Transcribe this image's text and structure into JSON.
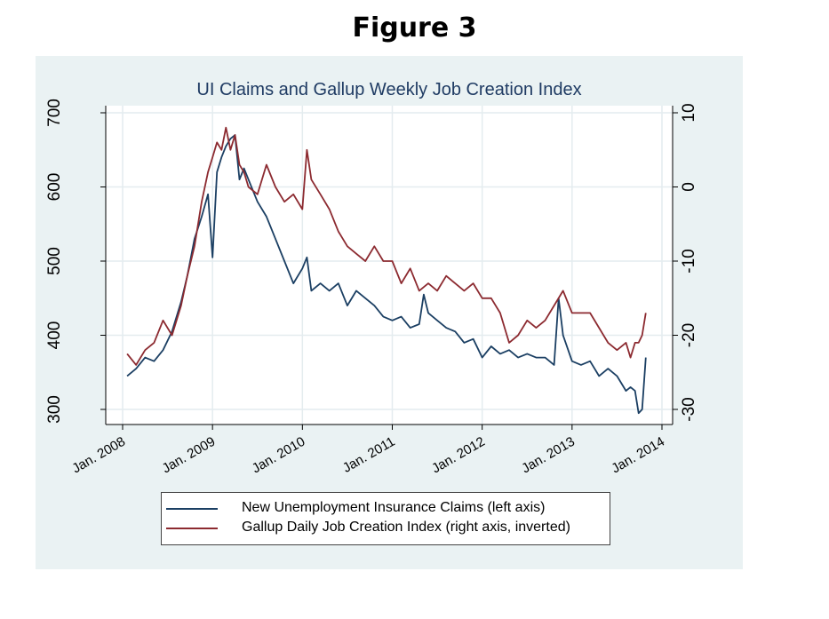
{
  "figure_label": "Figure 3",
  "chart_data": {
    "type": "line",
    "title": "UI Claims and Gallup Weekly Job Creation Index",
    "x_type": "date",
    "x_ticks": [
      "Jan. 2008",
      "Jan. 2009",
      "Jan. 2010",
      "Jan. 2011",
      "Jan. 2012",
      "Jan. 2013",
      "Jan. 2014"
    ],
    "x_tick_values": [
      2008,
      2009,
      2010,
      2011,
      2012,
      2013,
      2014
    ],
    "xlim": [
      2008,
      2014
    ],
    "left_axis": {
      "ylim": [
        300,
        700
      ],
      "ticks": [
        300,
        400,
        500,
        600,
        700
      ]
    },
    "right_axis": {
      "ylim": [
        -30,
        10
      ],
      "ticks": [
        -30,
        -20,
        -10,
        0,
        10
      ],
      "inverted": true
    },
    "grid": true,
    "legend_position": "bottom",
    "series": [
      {
        "name": "New Unemployment Insurance Claims (left axis)",
        "axis": "left",
        "color": "#1b3f63",
        "x": [
          2008.05,
          2008.15,
          2008.25,
          2008.35,
          2008.45,
          2008.55,
          2008.65,
          2008.72,
          2008.8,
          2008.88,
          2008.95,
          2009.0,
          2009.05,
          2009.1,
          2009.15,
          2009.2,
          2009.25,
          2009.3,
          2009.35,
          2009.4,
          2009.5,
          2009.6,
          2009.7,
          2009.8,
          2009.9,
          2010.0,
          2010.05,
          2010.1,
          2010.2,
          2010.3,
          2010.4,
          2010.5,
          2010.6,
          2010.7,
          2010.8,
          2010.9,
          2011.0,
          2011.1,
          2011.2,
          2011.3,
          2011.35,
          2011.4,
          2011.5,
          2011.6,
          2011.7,
          2011.8,
          2011.9,
          2012.0,
          2012.1,
          2012.2,
          2012.3,
          2012.4,
          2012.5,
          2012.6,
          2012.7,
          2012.8,
          2012.85,
          2012.9,
          2013.0,
          2013.1,
          2013.2,
          2013.3,
          2013.4,
          2013.5,
          2013.6,
          2013.65,
          2013.7,
          2013.74,
          2013.78,
          2013.82
        ],
        "values": [
          345,
          355,
          370,
          365,
          380,
          405,
          445,
          480,
          530,
          560,
          590,
          505,
          620,
          640,
          655,
          665,
          670,
          610,
          625,
          610,
          580,
          560,
          530,
          500,
          470,
          490,
          505,
          460,
          470,
          460,
          470,
          440,
          460,
          450,
          440,
          425,
          420,
          425,
          410,
          415,
          455,
          430,
          420,
          410,
          405,
          390,
          395,
          370,
          385,
          375,
          380,
          370,
          375,
          370,
          370,
          360,
          450,
          400,
          365,
          360,
          365,
          345,
          355,
          345,
          325,
          330,
          325,
          295,
          300,
          370
        ]
      },
      {
        "name": "Gallup Daily Job Creation Index (right axis, inverted)",
        "axis": "right",
        "color": "#8c2a30",
        "x": [
          2008.05,
          2008.15,
          2008.25,
          2008.35,
          2008.45,
          2008.55,
          2008.65,
          2008.72,
          2008.8,
          2008.88,
          2008.95,
          2009.0,
          2009.05,
          2009.1,
          2009.15,
          2009.2,
          2009.25,
          2009.3,
          2009.35,
          2009.4,
          2009.5,
          2009.6,
          2009.7,
          2009.8,
          2009.9,
          2010.0,
          2010.05,
          2010.1,
          2010.2,
          2010.3,
          2010.4,
          2010.5,
          2010.6,
          2010.7,
          2010.8,
          2010.9,
          2011.0,
          2011.1,
          2011.2,
          2011.3,
          2011.4,
          2011.5,
          2011.6,
          2011.7,
          2011.8,
          2011.9,
          2012.0,
          2012.1,
          2012.2,
          2012.3,
          2012.4,
          2012.5,
          2012.6,
          2012.7,
          2012.8,
          2012.9,
          2013.0,
          2013.1,
          2013.2,
          2013.3,
          2013.4,
          2013.5,
          2013.6,
          2013.65,
          2013.7,
          2013.74,
          2013.78,
          2013.82
        ],
        "values": [
          -22.5,
          -24,
          -22,
          -21,
          -18,
          -20,
          -16,
          -12,
          -8,
          -2,
          2,
          4,
          6,
          5,
          8,
          5,
          7,
          3,
          2,
          0,
          -1,
          3,
          0,
          -2,
          -1,
          -3,
          5,
          1,
          -1,
          -3,
          -6,
          -8,
          -9,
          -10,
          -8,
          -10,
          -10,
          -13,
          -11,
          -14,
          -13,
          -14,
          -12,
          -13,
          -14,
          -13,
          -15,
          -15,
          -17,
          -21,
          -20,
          -18,
          -19,
          -18,
          -16,
          -14,
          -17,
          -17,
          -17,
          -19,
          -21,
          -22,
          -21,
          -23,
          -21,
          -21,
          -20,
          -17
        ]
      }
    ]
  }
}
